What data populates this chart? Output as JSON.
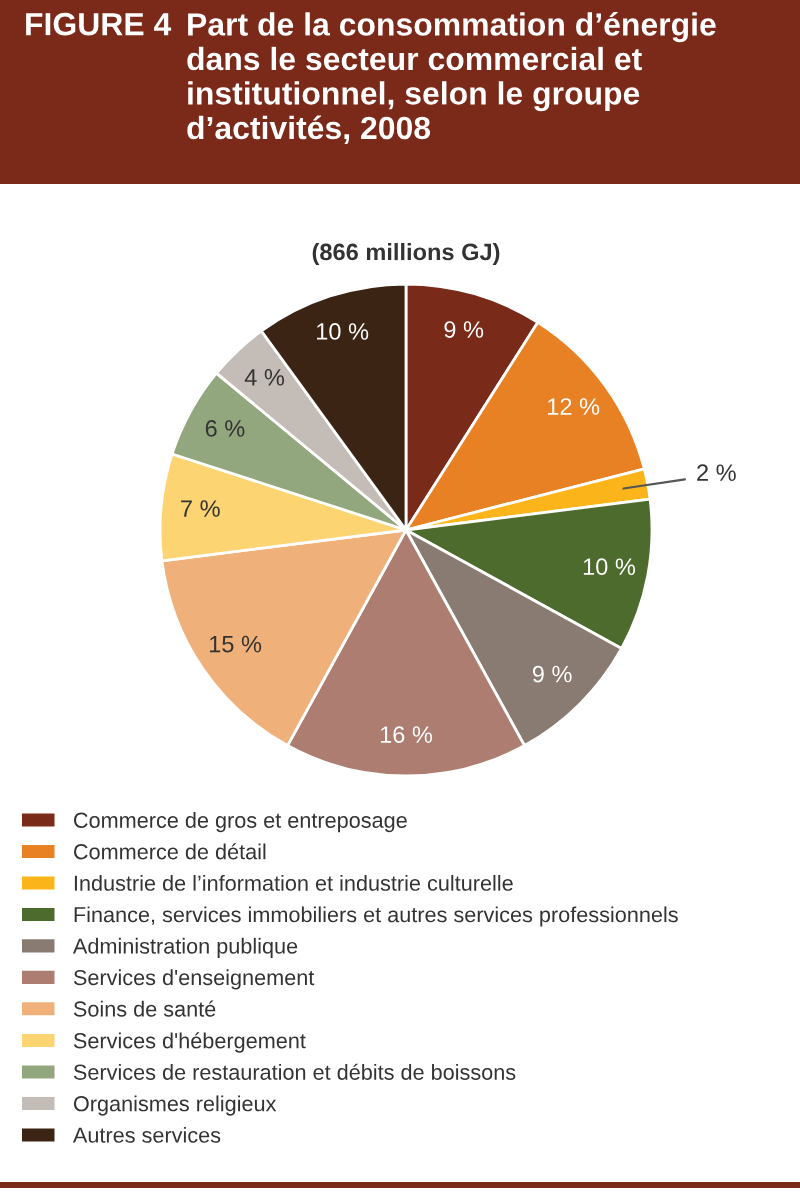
{
  "chart_data": {
    "type": "pie",
    "title": "Part de la consommation d’énergie dans le secteur commercial et institutionnel, selon le groupe d’activités, 2008",
    "subtitle": "(866 millions GJ)",
    "annotations": [
      "FIGURE 4"
    ],
    "categories": [
      "Commerce de gros et entreposage",
      "Commerce de détail",
      "Industrie de l’information et industrie culturelle",
      "Finance, services immobiliers et autres services professionnels",
      "Administration publique",
      "Services d'enseignement",
      "Soins de santé",
      "Services d'hébergement",
      "Services de restauration et débits de boissons",
      "Organismes religieux",
      "Autres services"
    ],
    "values": [
      9,
      12,
      2,
      10,
      9,
      16,
      15,
      7,
      6,
      4,
      10
    ],
    "value_labels": [
      "9 %",
      "12 %",
      "2 %",
      "10 %",
      "9 %",
      "16 %",
      "15 %",
      "7 %",
      "6 %",
      "4 %",
      "10 %"
    ],
    "colors": [
      "#7a2a18",
      "#e88024",
      "#fbb41a",
      "#4e6b2e",
      "#8a7b72",
      "#ad7d72",
      "#f0b07a",
      "#fdd472",
      "#93a77e",
      "#c4bcb6",
      "#3c2415"
    ],
    "legend": "bottom"
  }
}
